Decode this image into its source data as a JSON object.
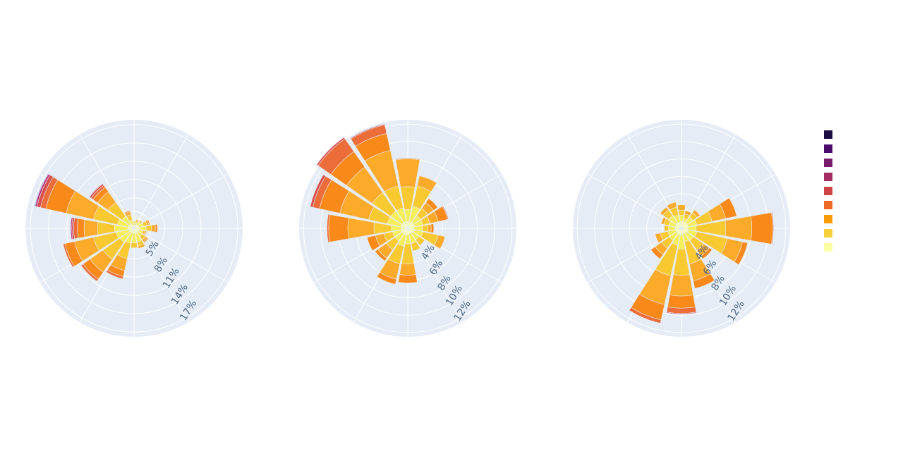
{
  "chart_data": [
    {
      "type": "barpolar",
      "radial_axis": {
        "ticks": [
          5,
          8,
          11,
          14,
          17
        ],
        "tick_suffix": "%",
        "range": [
          0,
          17.8
        ]
      },
      "directions_deg": [
        0,
        22.5,
        45,
        67.5,
        90,
        112.5,
        135,
        157.5,
        180,
        202.5,
        225,
        247.5,
        270,
        292.5,
        315,
        337.5
      ],
      "stacks": [
        [
          0.5,
          0.4,
          0.2,
          0.1,
          0.0,
          0.0,
          0.0,
          0.0,
          0.0
        ],
        [
          0.6,
          0.4,
          0.3,
          0.2,
          0.0,
          0.0,
          0.0,
          0.0,
          0.0
        ],
        [
          0.7,
          0.6,
          0.3,
          0.1,
          0.0,
          0.0,
          0.0,
          0.0,
          0.0
        ],
        [
          0.8,
          0.8,
          0.6,
          0.3,
          0.2,
          0.0,
          0.0,
          0.0,
          0.0
        ],
        [
          1.0,
          1.0,
          0.9,
          0.6,
          0.3,
          0.1,
          0.0,
          0.0,
          0.0
        ],
        [
          0.8,
          0.7,
          0.4,
          0.2,
          0.1,
          0.0,
          0.0,
          0.0,
          0.0
        ],
        [
          0.8,
          0.8,
          0.7,
          0.4,
          0.2,
          0.0,
          0.0,
          0.0,
          0.0
        ],
        [
          0.9,
          1.4,
          0.7,
          0.4,
          0.0,
          0.0,
          0.0,
          0.0,
          0.0
        ],
        [
          0.8,
          1.6,
          0.8,
          0.0,
          0.0,
          0.0,
          0.0,
          0.0,
          0.0
        ],
        [
          0.7,
          1.8,
          2.6,
          2.0,
          1.0,
          0.4,
          0.0,
          0.0,
          0.0
        ],
        [
          0.8,
          2.0,
          3.4,
          2.6,
          1.4,
          0.4,
          0.0,
          0.0,
          0.0
        ],
        [
          0.9,
          2.1,
          3.8,
          3.2,
          1.6,
          0.3,
          0.0,
          0.0,
          0.0
        ],
        [
          1.0,
          2.2,
          2.8,
          2.2,
          1.1,
          0.6,
          0.3,
          0.2,
          0.0
        ],
        [
          0.9,
          1.9,
          4.0,
          4.6,
          3.4,
          0.9,
          0.6,
          0.3,
          0.1
        ],
        [
          0.8,
          1.6,
          2.8,
          2.1,
          0.9,
          0.4,
          0.3,
          0.1,
          0.0
        ],
        [
          0.6,
          0.8,
          0.9,
          0.5,
          0.2,
          0.0,
          0.0,
          0.0,
          0.0
        ]
      ]
    },
    {
      "type": "barpolar",
      "radial_axis": {
        "ticks": [
          4,
          6,
          8,
          10,
          12
        ],
        "tick_suffix": "%",
        "range": [
          0,
          12.5
        ]
      },
      "directions_deg": [
        0,
        22.5,
        45,
        67.5,
        90,
        112.5,
        135,
        157.5,
        180,
        202.5,
        225,
        247.5,
        270,
        292.5,
        315,
        337.5
      ],
      "stacks": [
        [
          0.8,
          1.4,
          2.6,
          3.2,
          0.1,
          0.0,
          0.0,
          0.0,
          0.0
        ],
        [
          0.8,
          1.8,
          2.4,
          1.2,
          0.0,
          0.0,
          0.0,
          0.0,
          0.0
        ],
        [
          0.8,
          1.0,
          1.0,
          0.8,
          0.6,
          0.0,
          0.0,
          0.0,
          0.0
        ],
        [
          0.8,
          1.0,
          0.8,
          1.0,
          1.1,
          0.1,
          0.0,
          0.0,
          0.0
        ],
        [
          0.7,
          1.0,
          0.6,
          0.4,
          0.3,
          0.0,
          0.0,
          0.0,
          0.0
        ],
        [
          0.8,
          1.0,
          1.8,
          0.8,
          0.0,
          0.0,
          0.0,
          0.0,
          0.0
        ],
        [
          0.7,
          0.9,
          0.8,
          0.0,
          0.0,
          0.0,
          0.0,
          0.0,
          0.0
        ],
        [
          0.6,
          1.2,
          0.9,
          0.0,
          0.0,
          0.0,
          0.0,
          0.0,
          0.0
        ],
        [
          0.7,
          1.1,
          2.3,
          1.3,
          0.9,
          0.0,
          0.0,
          0.0,
          0.0
        ],
        [
          0.8,
          1.3,
          2.1,
          1.8,
          0.6,
          0.0,
          0.0,
          0.0,
          0.0
        ],
        [
          0.7,
          1.1,
          1.2,
          1.2,
          0.4,
          0.0,
          0.0,
          0.0,
          0.0
        ],
        [
          0.8,
          1.0,
          1.0,
          1.0,
          1.0,
          0.0,
          0.0,
          0.0,
          0.0
        ],
        [
          0.7,
          1.2,
          2.0,
          3.0,
          2.2,
          0.2,
          0.0,
          0.0,
          0.0
        ],
        [
          0.8,
          1.6,
          2.2,
          3.4,
          2.4,
          0.8,
          0.3,
          0.0,
          0.0
        ],
        [
          0.8,
          1.6,
          2.6,
          3.6,
          2.2,
          1.8,
          0.2,
          0.0,
          0.0
        ],
        [
          0.8,
          1.6,
          2.6,
          4.2,
          2.0,
          1.0,
          0.1,
          0.0,
          0.0
        ]
      ]
    },
    {
      "type": "barpolar",
      "radial_axis": {
        "ticks": [
          4,
          6,
          8,
          10,
          12
        ],
        "tick_suffix": "%",
        "range": [
          0,
          12.5
        ]
      },
      "directions_deg": [
        0,
        22.5,
        45,
        67.5,
        90,
        112.5,
        135,
        157.5,
        180,
        202.5,
        225,
        247.5,
        270,
        292.5,
        315,
        337.5
      ],
      "stacks": [
        [
          0.8,
          0.7,
          0.6,
          0.6,
          0.0,
          0.0,
          0.0,
          0.0,
          0.0
        ],
        [
          0.8,
          0.4,
          0.5,
          0.4,
          0.0,
          0.0,
          0.0,
          0.0,
          0.0
        ],
        [
          0.8,
          0.8,
          0.6,
          0.4,
          0.0,
          0.0,
          0.0,
          0.0,
          0.0
        ],
        [
          0.8,
          1.0,
          1.8,
          1.6,
          1.3,
          0.0,
          0.0,
          0.0,
          0.0
        ],
        [
          0.7,
          1.0,
          3.4,
          3.0,
          2.4,
          0.1,
          0.0,
          0.0,
          0.0
        ],
        [
          0.8,
          1.0,
          3.6,
          1.8,
          0.6,
          0.0,
          0.0,
          0.0,
          0.0
        ],
        [
          0.7,
          1.0,
          1.4,
          0.8,
          0.4,
          0.0,
          0.0,
          0.0,
          0.0
        ],
        [
          0.6,
          1.0,
          2.6,
          2.0,
          0.9,
          0.0,
          0.0,
          0.0,
          0.0
        ],
        [
          0.8,
          1.6,
          3.0,
          2.4,
          1.4,
          0.6,
          0.1,
          0.0,
          0.0
        ],
        [
          0.8,
          1.2,
          3.6,
          3.4,
          1.8,
          0.4,
          0.0,
          0.0,
          0.0
        ],
        [
          0.7,
          1.0,
          1.1,
          0.9,
          0.6,
          0.0,
          0.0,
          0.0,
          0.0
        ],
        [
          0.7,
          0.9,
          0.9,
          0.6,
          0.0,
          0.0,
          0.0,
          0.0,
          0.0
        ],
        [
          0.7,
          0.8,
          0.5,
          0.0,
          0.0,
          0.0,
          0.0,
          0.0,
          0.0
        ],
        [
          0.7,
          0.8,
          0.6,
          0.3,
          0.0,
          0.0,
          0.0,
          0.0,
          0.0
        ],
        [
          0.8,
          1.0,
          0.8,
          0.4,
          0.0,
          0.0,
          0.0,
          0.0,
          0.0
        ],
        [
          0.7,
          0.9,
          0.9,
          0.6,
          0.0,
          0.0,
          0.0,
          0.0,
          0.0
        ]
      ]
    }
  ],
  "legend": {
    "placement": "right",
    "colors": [
      "#0d0887",
      "#46039f",
      "#7201a8",
      "#9c179e",
      "#bd3786",
      "#d8576b",
      "#ed7953",
      "#fb9f3a",
      "#fdca26",
      "#f0f921"
    ],
    "swatch_colors": [
      "#1b0c41",
      "#4a0c6b",
      "#781c6d",
      "#a52c60",
      "#cf4446",
      "#ed6925",
      "#fb9b06",
      "#f7d13d",
      "#fcffa4"
    ]
  },
  "style": {
    "polar_bg": "#e5ecf6",
    "grid_color": "#ffffff",
    "tick_color": "#506784"
  }
}
